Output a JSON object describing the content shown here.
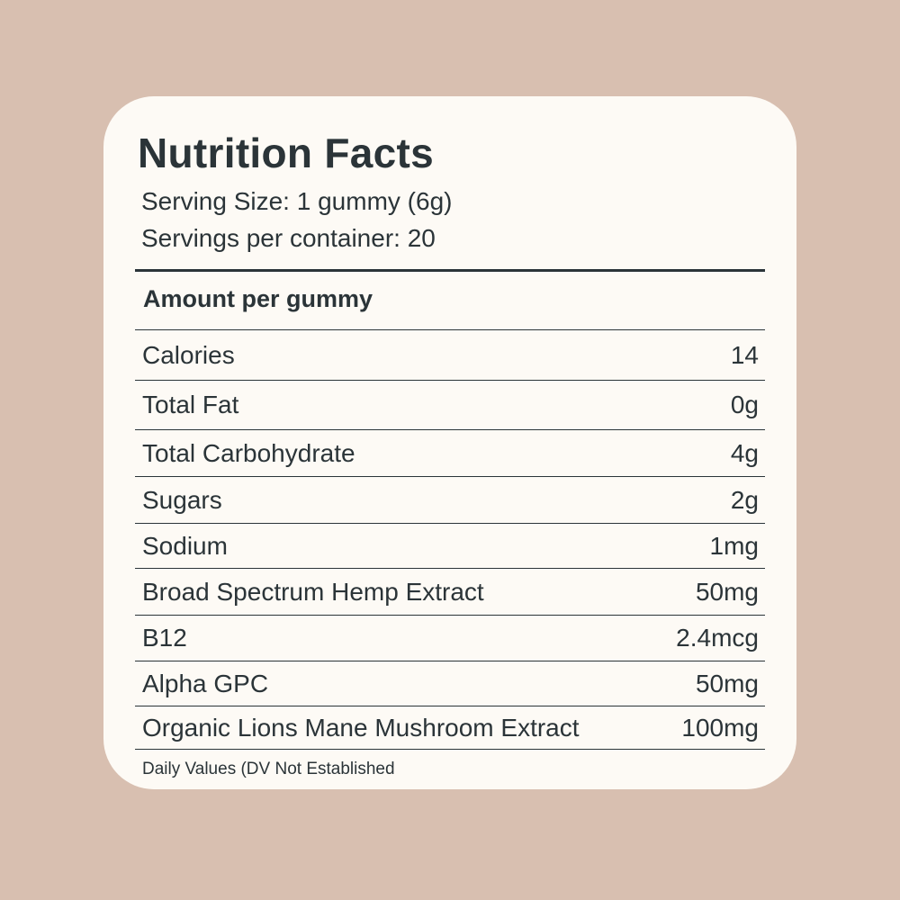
{
  "title": "Nutrition Facts",
  "serving_size": "Serving Size: 1 gummy (6g)",
  "servings_per_container": "Servings per container: 20",
  "amount_header": "Amount per gummy",
  "rows": [
    {
      "name": "Calories",
      "value": "14"
    },
    {
      "name": "Total Fat",
      "value": "0g"
    },
    {
      "name": "Total Carbohydrate",
      "value": "4g"
    },
    {
      "name": "Sugars",
      "value": "2g"
    },
    {
      "name": "Sodium",
      "value": "1mg"
    },
    {
      "name": "Broad Spectrum Hemp Extract",
      "value": "50mg"
    },
    {
      "name": "B12",
      "value": "2.4mcg"
    },
    {
      "name": "Alpha GPC",
      "value": "50mg"
    },
    {
      "name": "Organic Lions Mane Mushroom Extract",
      "value": "100mg"
    }
  ],
  "footnote": "Daily Values (DV Not Established",
  "colors": {
    "background": "#d8bfb0",
    "card": "#fdfaf5",
    "text": "#2b3438"
  }
}
